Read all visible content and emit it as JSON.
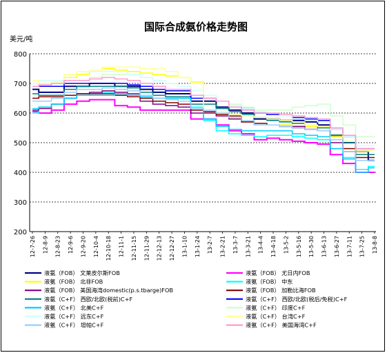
{
  "chart_data": {
    "type": "line",
    "title": "国际合成氨价格走势图",
    "ylabel": "美元/吨",
    "xlabel": "",
    "ylim": [
      200,
      800
    ],
    "yticks": [
      200,
      300,
      400,
      500,
      600,
      700,
      800
    ],
    "grid": true,
    "legend_position": "bottom",
    "x": [
      "12-7-26",
      "12-8-9",
      "12-8-23",
      "12-9-6",
      "12-9-20",
      "12-10-4",
      "12-10-18",
      "12-11-1",
      "12-11-15",
      "12-11-29",
      "12-12-13",
      "12-12-27",
      "13-1-10",
      "13-1-24",
      "13-2-7",
      "13-2-21",
      "13-3-7",
      "13-3-21",
      "13-4-4",
      "13-4-18",
      "13-5-2",
      "13-5-16",
      "13-5-30",
      "13-6-13",
      "13-6-27",
      "13-7-11",
      "13-7-25",
      "13-8-8"
    ],
    "series": [
      {
        "name": "液氨（FOB） 文莱皮尔斯FOB",
        "color": "#000080",
        "width": 2,
        "values": [
          680,
          670,
          670,
          690,
          690,
          700,
          700,
          690,
          690,
          680,
          670,
          665,
          665,
          640,
          640,
          620,
          610,
          600,
          580,
          580,
          575,
          575,
          570,
          560,
          525,
          500,
          470,
          440
        ]
      },
      {
        "name": "液氨（FOB） 尤日内FOB",
        "color": "#ff00ff",
        "width": 2,
        "values": [
          605,
          600,
          610,
          630,
          640,
          645,
          645,
          625,
          620,
          610,
          610,
          610,
          610,
          580,
          580,
          560,
          540,
          530,
          510,
          515,
          510,
          505,
          500,
          495,
          460,
          430,
          400,
          400
        ]
      },
      {
        "name": "液氨（FOB） 北非FOB",
        "color": "#ffff00",
        "width": 1.5,
        "values": [
          710,
          700,
          700,
          720,
          730,
          740,
          750,
          745,
          740,
          735,
          730,
          725,
          720,
          705,
          600,
          590,
          580,
          570,
          565,
          560,
          560,
          555,
          555,
          550,
          520,
          480,
          470,
          475
        ]
      },
      {
        "name": "液氨（FOB） 中东",
        "color": "#00ffff",
        "width": 1.5,
        "values": [
          600,
          620,
          630,
          660,
          660,
          665,
          670,
          665,
          660,
          650,
          650,
          650,
          650,
          620,
          575,
          540,
          530,
          525,
          520,
          525,
          525,
          520,
          515,
          510,
          480,
          450,
          410,
          420
        ]
      },
      {
        "name": "液氨（FOB） 美国海湾domestic(p.s.tbarge)FOB",
        "color": "#800080",
        "width": 1.5,
        "values": [
          610,
          615,
          630,
          650,
          665,
          670,
          675,
          670,
          665,
          640,
          630,
          625,
          620,
          600,
          600,
          590,
          580,
          570,
          560,
          560,
          555,
          555,
          545,
          540,
          500,
          470,
          440,
          440
        ]
      },
      {
        "name": "液氨（FOB） 加勒比海FOB",
        "color": "#800000",
        "width": 1.5,
        "values": [
          650,
          655,
          655,
          660,
          665,
          665,
          665,
          660,
          655,
          650,
          640,
          635,
          630,
          610,
          605,
          595,
          590,
          570,
          565,
          560,
          555,
          550,
          545,
          540,
          510,
          480,
          450,
          450
        ]
      },
      {
        "name": "液氨（C+F） 西欧/北欧(税前)C+F",
        "color": "#008080",
        "width": 1.5,
        "values": [
          665,
          660,
          660,
          680,
          690,
          690,
          690,
          690,
          685,
          670,
          660,
          655,
          655,
          630,
          630,
          615,
          605,
          595,
          585,
          575,
          570,
          565,
          560,
          550,
          525,
          500,
          460,
          460
        ]
      },
      {
        "name": "液氨（C+F） 西欧/北欧(税后/免税)C+F",
        "color": "#0000ff",
        "width": 1.5,
        "values": [
          690,
          690,
          690,
          700,
          700,
          700,
          700,
          700,
          695,
          690,
          680,
          675,
          675,
          650,
          650,
          640,
          625,
          615,
          600,
          595,
          590,
          585,
          580,
          575,
          545,
          520,
          480,
          480
        ]
      },
      {
        "name": "液氨（C+F） 北美C+F",
        "color": "#00ccff",
        "width": 1.5,
        "values": [
          615,
          620,
          630,
          650,
          660,
          660,
          660,
          665,
          660,
          655,
          650,
          650,
          650,
          615,
          580,
          555,
          545,
          540,
          540,
          540,
          540,
          530,
          525,
          520,
          480,
          445,
          400,
          415
        ]
      },
      {
        "name": "液氨（C+F） 印度C+F",
        "color": "#ccffcc",
        "width": 1.5,
        "values": [
          700,
          700,
          700,
          710,
          710,
          720,
          730,
          730,
          730,
          720,
          710,
          700,
          690,
          660,
          650,
          640,
          630,
          620,
          610,
          610,
          610,
          620,
          625,
          630,
          590,
          560,
          520,
          520
        ]
      },
      {
        "name": "液氨（C+F） 远东C+F",
        "color": "#ccffff",
        "width": 1.5,
        "values": [
          700,
          710,
          710,
          730,
          740,
          740,
          740,
          740,
          730,
          720,
          710,
          700,
          690,
          675,
          660,
          640,
          625,
          615,
          605,
          600,
          590,
          580,
          575,
          570,
          545,
          520,
          490,
          490
        ]
      },
      {
        "name": "液氨（C+F） 台湾C+F",
        "color": "#ffff99",
        "width": 1.5,
        "values": [
          710,
          700,
          705,
          730,
          740,
          745,
          755,
          755,
          755,
          750,
          750,
          740,
          720,
          700,
          610,
          605,
          595,
          590,
          585,
          580,
          575,
          570,
          560,
          555,
          530,
          505,
          475,
          475
        ]
      },
      {
        "name": "液氨（C+F） 坦帕C+F",
        "color": "#99ccff",
        "width": 1.5,
        "values": [
          640,
          640,
          650,
          670,
          680,
          680,
          685,
          680,
          675,
          660,
          650,
          645,
          640,
          615,
          610,
          600,
          585,
          575,
          560,
          560,
          555,
          550,
          545,
          540,
          510,
          470,
          440,
          440
        ]
      },
      {
        "name": "液氨（C+F） 美国海湾C+F",
        "color": "#ff99cc",
        "width": 1.5,
        "values": [
          690,
          695,
          700,
          710,
          710,
          715,
          720,
          715,
          710,
          700,
          690,
          680,
          680,
          660,
          650,
          640,
          620,
          610,
          600,
          600,
          595,
          590,
          585,
          580,
          550,
          525,
          480,
          480
        ]
      }
    ]
  }
}
